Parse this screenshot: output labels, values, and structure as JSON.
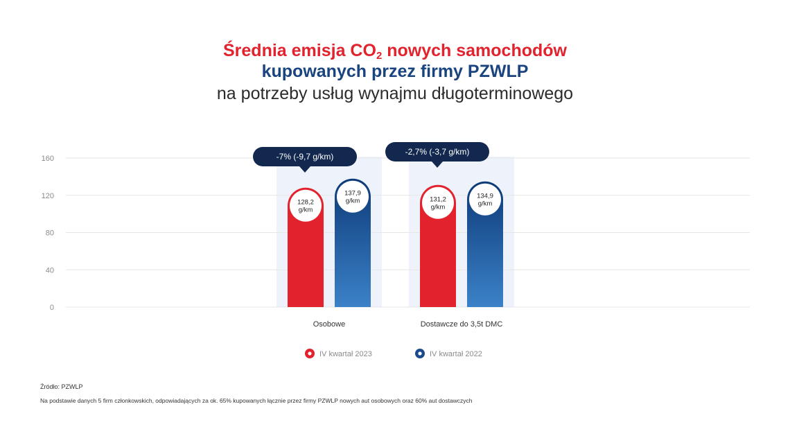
{
  "title": {
    "line1_prefix": "Średnia emisja CO",
    "line1_sub": "2",
    "line1_suffix": " nowych samochodów",
    "line2": "kupowanych przez firmy PZWLP",
    "line3": "na potrzeby usług wynajmu długoterminowego"
  },
  "colors": {
    "red": "#e2222d",
    "blue_top": "#0d3a78",
    "blue_bottom": "#3b82c8",
    "navy_label": "#12284f",
    "highlight": "#eef3fb",
    "grid": "#e6e6e6"
  },
  "chart_data": {
    "type": "bar",
    "categories": [
      "Osobowe",
      "Dostawcze do 3,5t DMC"
    ],
    "series": [
      {
        "name": "IV kwartał 2023",
        "values": [
          128.2,
          131.2
        ],
        "labels": [
          "128,2",
          "131,2"
        ],
        "color": "#e2222d"
      },
      {
        "name": "IV kwartał 2022",
        "values": [
          137.9,
          134.9
        ],
        "labels": [
          "137,9",
          "134,9"
        ],
        "color": "#1a4a8c"
      }
    ],
    "unit_label": "g/km",
    "ylim": [
      0,
      160
    ],
    "yticks": [
      "0",
      "40",
      "80",
      "120",
      "160"
    ],
    "change_labels": [
      "-7% (-9,7 g/km)",
      "-2,7% (-3,7 g/km)"
    ],
    "grid": true,
    "legend_position": "bottom-center"
  },
  "footer": {
    "source": "Źródło: PZWLP",
    "note": "Na podstawie danych 5 firm członkowskich, odpowiadających za ok. 65% kupowanych łącznie przez firmy PZWLP nowych aut osobowych oraz 60% aut dostawczych"
  }
}
